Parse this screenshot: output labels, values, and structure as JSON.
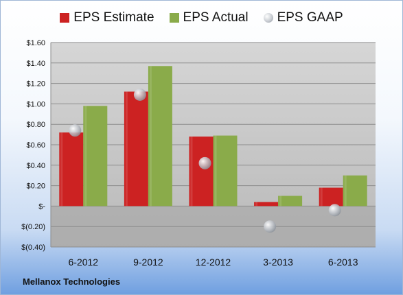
{
  "chart_data": {
    "type": "bar",
    "categories": [
      "6-2012",
      "9-2012",
      "12-2012",
      "3-2013",
      "6-2013"
    ],
    "series": [
      {
        "name": "EPS Estimate",
        "kind": "bar",
        "color": "#cc2222",
        "values": [
          0.72,
          1.12,
          0.68,
          0.04,
          0.18
        ]
      },
      {
        "name": "EPS Actual",
        "kind": "bar",
        "color": "#8aab4a",
        "values": [
          0.98,
          1.37,
          0.69,
          0.1,
          0.3
        ]
      },
      {
        "name": "EPS GAAP",
        "kind": "marker",
        "color": "#b9bec5",
        "values": [
          0.74,
          1.09,
          0.42,
          -0.2,
          -0.04
        ]
      }
    ],
    "ylim": [
      -0.4,
      1.6
    ],
    "yticks": [
      -0.4,
      -0.2,
      0.0,
      0.2,
      0.4,
      0.6,
      0.8,
      1.0,
      1.2,
      1.4,
      1.6
    ],
    "ytick_labels": [
      "$(0.40)",
      "$(0.20)",
      "$-",
      "$0.20",
      "$0.40",
      "$0.60",
      "$0.80",
      "$1.00",
      "$1.20",
      "$1.40",
      "$1.60"
    ],
    "grid": true,
    "legend_position": "top"
  },
  "footer": {
    "company": "Mellanox Technologies"
  }
}
